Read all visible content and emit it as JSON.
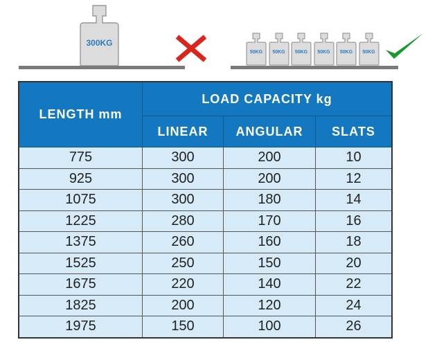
{
  "illustration": {
    "wrong": {
      "weight_label": "300KG",
      "icon": "cross-icon",
      "color": "#d8261f"
    },
    "right": {
      "weight_labels": [
        "50KG",
        "50KG",
        "50KG",
        "50KG",
        "50KG",
        "50KG"
      ],
      "icon": "check-icon",
      "color": "#1a9a2e"
    }
  },
  "table": {
    "header_length": "LENGTH mm",
    "header_group": "LOAD CAPACITY kg",
    "subheaders": [
      "LINEAR",
      "ANGULAR",
      "SLATS"
    ],
    "rows": [
      [
        "775",
        "300",
        "200",
        "10"
      ],
      [
        "925",
        "300",
        "200",
        "12"
      ],
      [
        "1075",
        "300",
        "180",
        "14"
      ],
      [
        "1225",
        "280",
        "170",
        "16"
      ],
      [
        "1375",
        "260",
        "160",
        "18"
      ],
      [
        "1525",
        "250",
        "150",
        "20"
      ],
      [
        "1675",
        "220",
        "140",
        "22"
      ],
      [
        "1825",
        "200",
        "120",
        "24"
      ],
      [
        "1975",
        "150",
        "100",
        "26"
      ]
    ]
  },
  "colors": {
    "header": "#1478c0",
    "row": "#d6eaf8"
  }
}
